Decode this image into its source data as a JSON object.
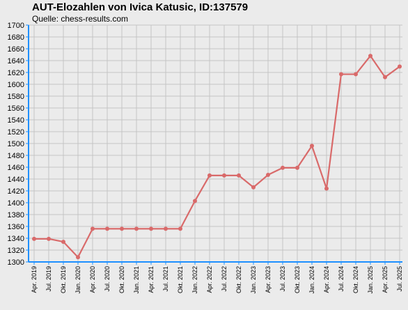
{
  "header": {
    "title": "AUT-Elozahlen von Ivica Katusic, ID:137579",
    "subtitle": "Quelle: chess-results.com"
  },
  "chart_data": {
    "type": "line",
    "title": "AUT-Elozahlen von Ivica Katusic, ID:137579",
    "subtitle": "Quelle: chess-results.com",
    "xlabel": "",
    "ylabel": "",
    "ylim": [
      1300,
      1700
    ],
    "ytick_step": 20,
    "grid": true,
    "line_color": "#d96a6a",
    "categories": [
      "Apr. 2019",
      "Jul. 2019",
      "Okt. 2019",
      "Jan. 2020",
      "Apr. 2020",
      "Jul. 2020",
      "Okt. 2020",
      "Jan. 2021",
      "Apr. 2021",
      "Jul. 2021",
      "Okt. 2021",
      "Jan. 2022",
      "Apr. 2022",
      "Jul. 2022",
      "Okt. 2022",
      "Jan. 2023",
      "Apr. 2023",
      "Jul. 2023",
      "Okt. 2023",
      "Jan. 2024",
      "Apr. 2024",
      "Jul. 2024",
      "Okt. 2024",
      "Jan. 2025",
      "Apr. 2025",
      "Jul. 2025"
    ],
    "series": [
      {
        "values": [
          1339,
          1339,
          1334,
          1308,
          1356,
          1356,
          1356,
          1356,
          1356,
          1356,
          1356,
          1403,
          1446,
          1446,
          1446,
          1426,
          1447,
          1459,
          1459,
          1496,
          1424,
          1617,
          1617,
          1648,
          1612,
          1630
        ]
      }
    ]
  }
}
